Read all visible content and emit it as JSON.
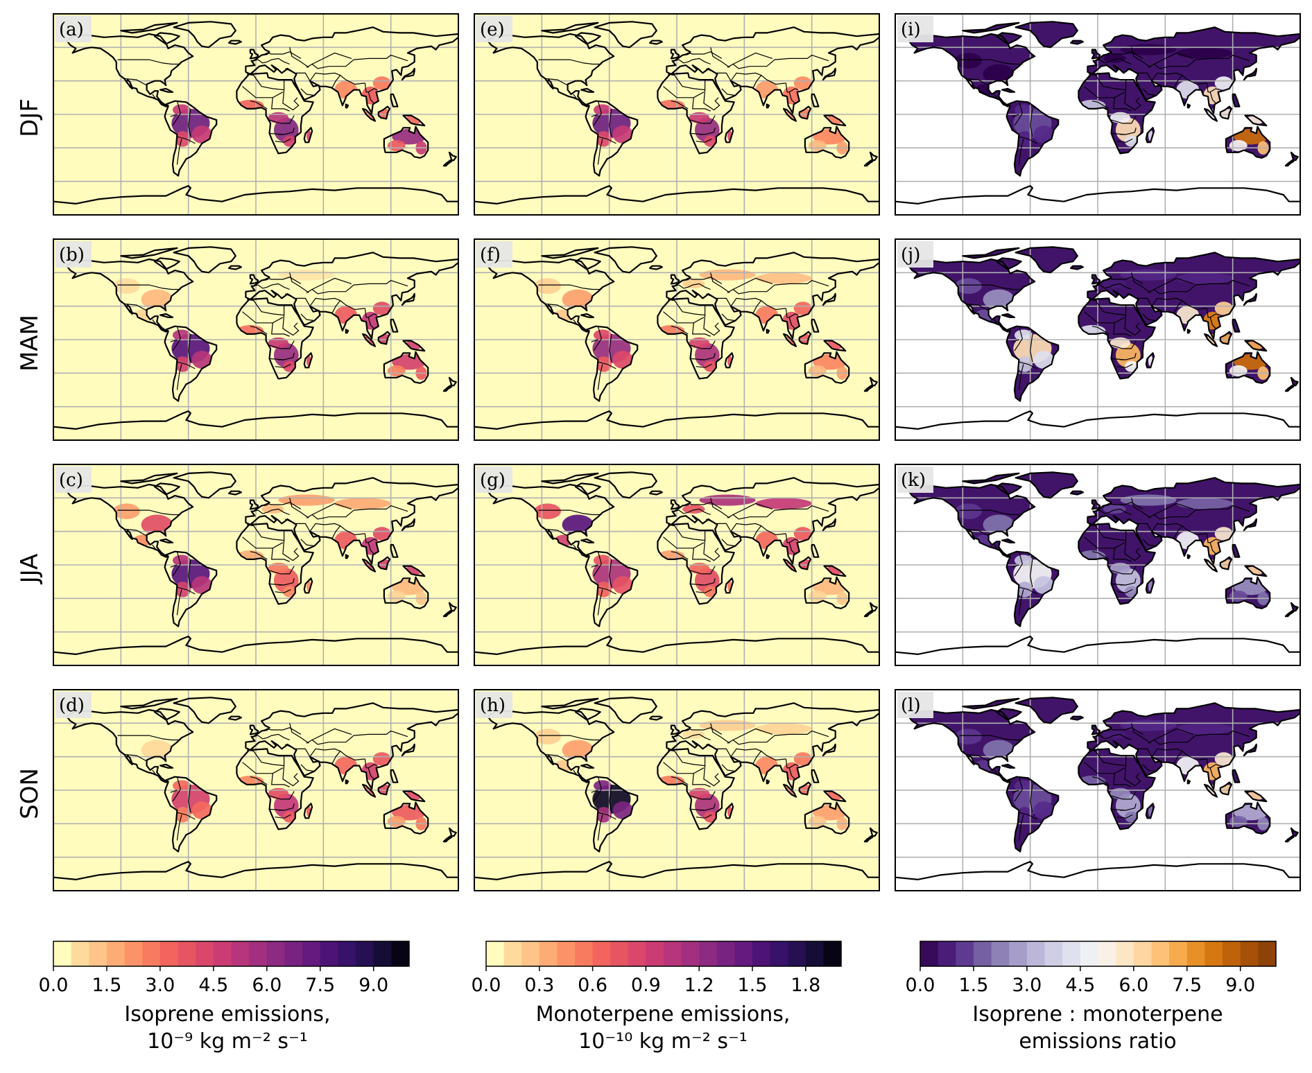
{
  "chart_data": {
    "type": "heatmap",
    "description_rows": [
      "DJF",
      "MAM",
      "JJA",
      "SON"
    ],
    "columns": [
      {
        "variable": "isoprene",
        "panels": [
          "(a)",
          "(b)",
          "(c)",
          "(d)"
        ],
        "colormap": "magma_r",
        "colorbar": {
          "ticks": [
            "0.0",
            "1.5",
            "3.0",
            "4.5",
            "6.0",
            "7.5",
            "9.0"
          ],
          "range": [
            0,
            10
          ],
          "levels": 20,
          "title_line1": "Isoprene emissions,",
          "title_line2": "10⁻⁹ kg m⁻² s⁻¹"
        }
      },
      {
        "variable": "monoterpene",
        "panels": [
          "(e)",
          "(f)",
          "(g)",
          "(h)"
        ],
        "colormap": "magma_r",
        "colorbar": {
          "ticks": [
            "0.0",
            "0.3",
            "0.6",
            "0.9",
            "1.2",
            "1.5",
            "1.8"
          ],
          "range": [
            0,
            2
          ],
          "levels": 20,
          "title_line1": "Monoterpene emissions,",
          "title_line2": "10⁻¹⁰ kg m⁻² s⁻¹"
        }
      },
      {
        "variable": "ratio",
        "panels": [
          "(i)",
          "(j)",
          "(k)",
          "(l)"
        ],
        "colormap": "PuOr_r",
        "colorbar": {
          "ticks": [
            "0.0",
            "1.5",
            "3.0",
            "4.5",
            "6.0",
            "7.5",
            "9.0"
          ],
          "range": [
            0,
            10
          ],
          "levels": 20,
          "title_line1": "Isoprene : monoterpene",
          "title_line2": "emissions ratio"
        }
      }
    ],
    "seasonal_regions": {
      "DJF": {
        "amazon": [
          7,
          1.4,
          1.5
        ],
        "s_africa": [
          6.5,
          1.2,
          6
        ],
        "australia": [
          6,
          0.5,
          8.5
        ],
        "se_asia": [
          3.5,
          0.6,
          6
        ],
        "na_east": [
          0,
          0,
          0
        ],
        "eurasia": [
          0,
          0,
          0
        ]
      },
      "MAM": {
        "amazon": [
          7.5,
          1.2,
          6
        ],
        "s_africa": [
          6,
          1.1,
          7
        ],
        "australia": [
          4.5,
          0.5,
          8.5
        ],
        "se_asia": [
          5,
          0.8,
          8
        ],
        "na_east": [
          1.5,
          0.4,
          2.5
        ],
        "eurasia": [
          0.5,
          0.3,
          1
        ]
      },
      "JJA": {
        "amazon": [
          7.5,
          1.1,
          5
        ],
        "s_africa": [
          3.5,
          0.8,
          3.5
        ],
        "australia": [
          1.5,
          0.3,
          2.5
        ],
        "se_asia": [
          5,
          0.9,
          7
        ],
        "na_east": [
          4,
          1.5,
          2
        ],
        "eurasia": [
          2,
          1.1,
          2
        ]
      },
      "SON": {
        "amazon": [
          4.5,
          1.9,
          1.5
        ],
        "s_africa": [
          5,
          1.1,
          3
        ],
        "australia": [
          3.5,
          0.4,
          3
        ],
        "se_asia": [
          4.5,
          0.7,
          7
        ],
        "na_east": [
          0.8,
          0.4,
          2
        ],
        "eurasia": [
          0.3,
          0.2,
          1
        ]
      }
    }
  }
}
